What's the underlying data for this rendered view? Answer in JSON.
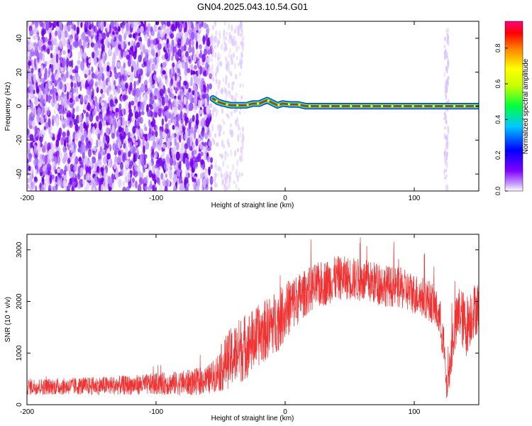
{
  "figure": {
    "title": "GN04.2025.043.10.54.G01"
  },
  "chart_data": [
    {
      "id": "spectrogram",
      "type": "heatmap",
      "xlabel": "Height of straight line (km)",
      "ylabel": "Frequency (Hz)",
      "xlim": [
        -200,
        150
      ],
      "ylim": [
        -50,
        50
      ],
      "x_ticks": [
        -200,
        -100,
        0,
        100
      ],
      "y_ticks": [
        -40,
        -20,
        0,
        20,
        40
      ],
      "x_tick_labels": [
        "-200",
        "-100",
        "0",
        "100"
      ],
      "y_tick_labels": [
        "-40",
        "-20",
        "0",
        "20",
        "40"
      ],
      "grid": false,
      "noise_region_x": [
        -200,
        -57
      ],
      "signal_start_x": -57,
      "signal_track": [
        [
          -56,
          4.5
        ],
        [
          -52,
          2.5
        ],
        [
          -48,
          1.5
        ],
        [
          -42,
          0.5
        ],
        [
          -36,
          0.5
        ],
        [
          -30,
          0.5
        ],
        [
          -25,
          1.5
        ],
        [
          -20,
          1.5
        ],
        [
          -14,
          3.5
        ],
        [
          -10,
          2.0
        ],
        [
          -6,
          0.5
        ],
        [
          -2,
          1.5
        ],
        [
          4,
          1.0
        ],
        [
          10,
          1.0
        ],
        [
          16,
          0.0
        ],
        [
          40,
          0.0
        ],
        [
          70,
          0.0
        ],
        [
          100,
          0.0
        ],
        [
          130,
          0.0
        ],
        [
          150,
          0.0
        ]
      ],
      "artifact_x": 125,
      "colorbar": {
        "label": "Normalized spectral amplitude",
        "range": [
          0,
          0.95
        ],
        "ticks": [
          0.0,
          0.2,
          0.4,
          0.6,
          0.8
        ],
        "tick_labels": [
          "0.0",
          "0.2",
          "0.4",
          "0.6",
          "0.8"
        ],
        "colors": [
          "#ffffff",
          "#8000ff",
          "#0000ff",
          "#00ffff",
          "#00ff00",
          "#ffff00",
          "#ff8000",
          "#ff0000",
          "#ff0080"
        ]
      }
    },
    {
      "id": "snr",
      "type": "line",
      "xlabel": "Height of straight line (km)",
      "ylabel": "SNR (10 * v/v)",
      "xlim": [
        -200,
        150
      ],
      "ylim": [
        0,
        3300
      ],
      "x_ticks": [
        -200,
        -100,
        0,
        100
      ],
      "y_ticks": [
        0,
        1000,
        2000,
        3000
      ],
      "x_tick_labels": [
        "-200",
        "-100",
        "0",
        "100"
      ],
      "y_tick_labels": [
        "0",
        "1000",
        "2000",
        "3000"
      ],
      "grid": false,
      "color": "#f03232",
      "series": [
        {
          "x": [
            -200,
            -180,
            -160,
            -140,
            -120,
            -100,
            -80,
            -70,
            -60,
            -55,
            -50,
            -45,
            -40,
            -35,
            -30,
            -25,
            -20,
            -15,
            -10,
            -5,
            0,
            5,
            10,
            15,
            20,
            30,
            40,
            50,
            60,
            70,
            80,
            90,
            100,
            110,
            115,
            120,
            123,
            125,
            127,
            130,
            135,
            140,
            145,
            150
          ],
          "y": [
            350,
            350,
            360,
            370,
            380,
            400,
            420,
            440,
            480,
            560,
            700,
            850,
            950,
            1050,
            1150,
            1250,
            1350,
            1450,
            1550,
            1650,
            1800,
            1950,
            2050,
            2150,
            2250,
            2350,
            2450,
            2450,
            2400,
            2350,
            2300,
            2250,
            2150,
            2050,
            1950,
            1650,
            1100,
            300,
            600,
            1300,
            1800,
            1500,
            1800,
            1900
          ],
          "spread": [
            160,
            160,
            170,
            180,
            190,
            210,
            240,
            260,
            280,
            320,
            450,
            550,
            600,
            650,
            650,
            600,
            600,
            600,
            600,
            600,
            550,
            550,
            500,
            450,
            450,
            450,
            430,
            420,
            420,
            420,
            400,
            400,
            400,
            400,
            400,
            400,
            400,
            250,
            350,
            500,
            550,
            600,
            550,
            500
          ]
        }
      ]
    }
  ]
}
